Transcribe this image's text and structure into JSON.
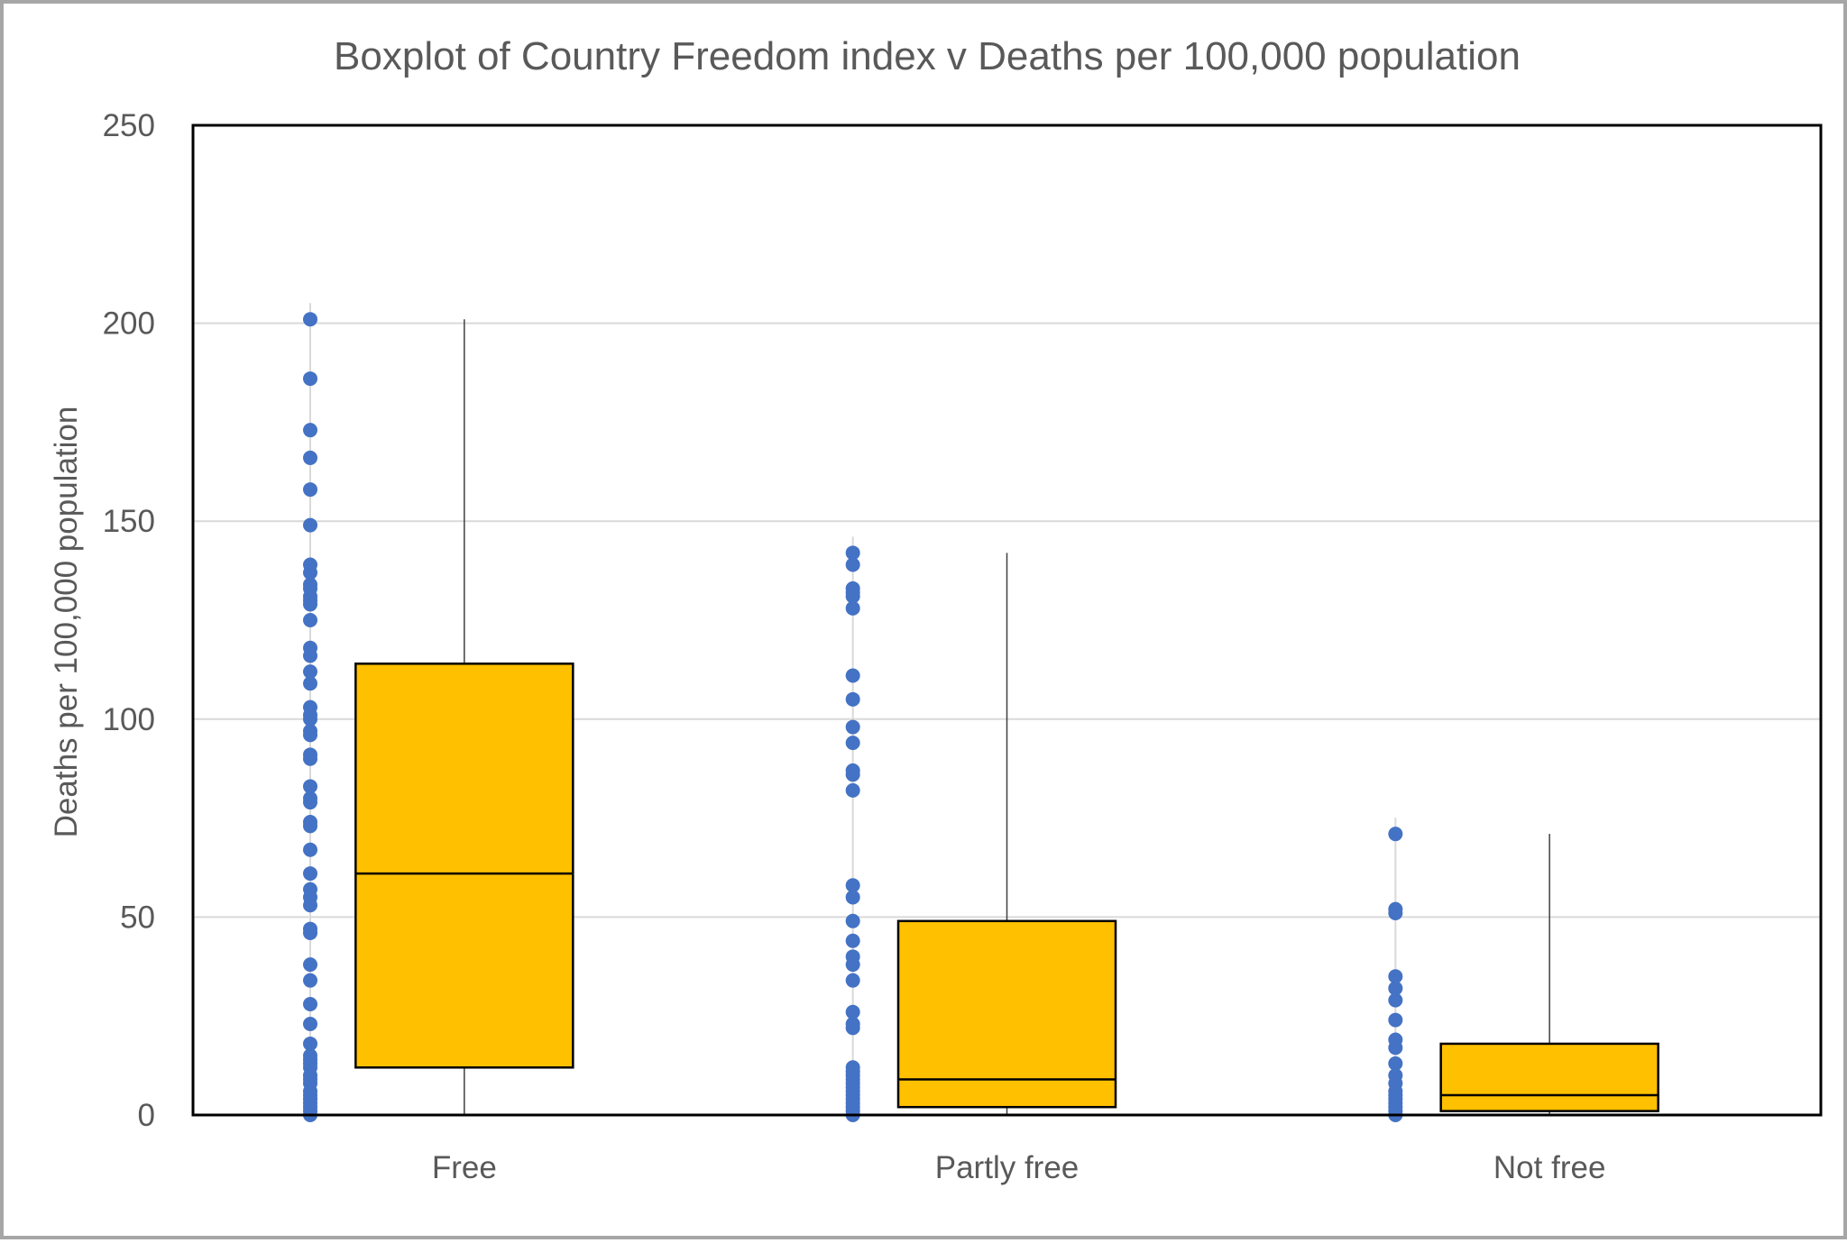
{
  "chart_data": {
    "type": "box",
    "title": "Boxplot of Country Freedom index v Deaths per 100,000 population",
    "xlabel": "",
    "ylabel": "Deaths  per 100,000 population",
    "ylim": [
      0,
      250
    ],
    "yticks": [
      0,
      50,
      100,
      150,
      200,
      250
    ],
    "grid": true,
    "legend": "none",
    "colors": {
      "box": "#ffc000",
      "points": "#4472c4",
      "grid": "#d9d9d9",
      "text": "#595959"
    },
    "categories": [
      "Free",
      "Partly free",
      "Not free"
    ],
    "boxes": [
      {
        "category": "Free",
        "min": 0,
        "q1": 12,
        "median": 61,
        "q3": 114,
        "max": 201,
        "points": [
          201,
          186,
          173,
          166,
          158,
          149,
          139,
          137,
          134,
          133,
          131,
          130,
          129,
          125,
          118,
          116,
          112,
          109,
          103,
          101,
          100,
          97,
          96,
          91,
          90,
          83,
          80,
          79,
          74,
          73,
          67,
          61,
          57,
          55,
          53,
          47,
          46,
          38,
          34,
          28,
          23,
          18,
          15,
          14,
          13,
          12,
          10,
          9,
          8,
          6,
          5,
          4,
          3,
          2,
          1,
          0
        ]
      },
      {
        "category": "Partly free",
        "min": 0,
        "q1": 2,
        "median": 9,
        "q3": 49,
        "max": 142,
        "points": [
          142,
          139,
          133,
          132,
          131,
          128,
          111,
          105,
          98,
          94,
          87,
          86,
          82,
          58,
          55,
          49,
          44,
          40,
          38,
          34,
          26,
          23,
          22,
          12,
          11,
          10,
          9,
          8,
          7,
          6,
          5,
          4,
          3,
          2,
          1,
          0
        ]
      },
      {
        "category": "Not free",
        "min": 0,
        "q1": 1,
        "median": 5,
        "q3": 18,
        "max": 71,
        "points": [
          71,
          52,
          51,
          35,
          32,
          29,
          24,
          19,
          17,
          13,
          10,
          8,
          6,
          5,
          4,
          3,
          2,
          1,
          0
        ]
      }
    ]
  }
}
